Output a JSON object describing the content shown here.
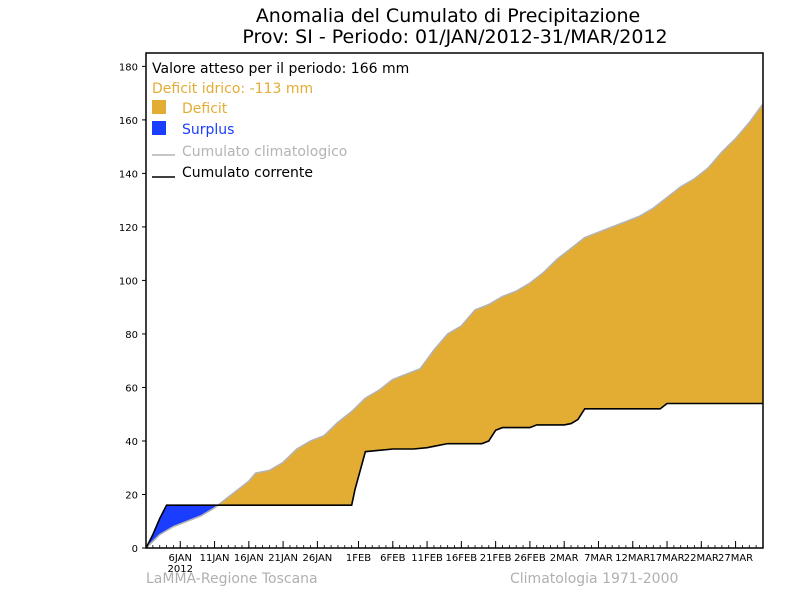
{
  "title_line1": "Anomalia del Cumulato di Precipitazione",
  "title_line2": "Prov: SI - Periodo: 01/JAN/2012-31/MAR/2012",
  "legend": {
    "expected": "Valore atteso per il periodo: 166 mm",
    "deficit_note": "Deficit idrico: -113 mm",
    "deficit": "Deficit",
    "surplus": "Surplus",
    "climatological": "Cumulato climatologico",
    "current": "Cumulato corrente"
  },
  "footer": {
    "left": "LaMMA-Regione Toscana",
    "right": "Climatologia 1971-2000"
  },
  "colors": {
    "deficit": "#e3ac33",
    "surplus": "#1a3dff",
    "climatological": "#b4b4b4",
    "current": "#000000",
    "deficit_text": "#e3ac33",
    "surplus_text": "#1a3dff"
  },
  "chart_data": {
    "type": "area",
    "x_unit": "day of period (1 = 1 JAN 2012)",
    "xlim": [
      1,
      91
    ],
    "ylim": [
      0,
      185
    ],
    "y_ticks": [
      0,
      20,
      40,
      60,
      80,
      100,
      120,
      140,
      160,
      180
    ],
    "x_ticks": [
      {
        "day": 6,
        "label": "6JAN"
      },
      {
        "day": 11,
        "label": "11JAN"
      },
      {
        "day": 16,
        "label": "16JAN"
      },
      {
        "day": 21,
        "label": "21JAN"
      },
      {
        "day": 26,
        "label": "26JAN"
      },
      {
        "day": 32,
        "label": "1FEB"
      },
      {
        "day": 37,
        "label": "6FEB"
      },
      {
        "day": 42,
        "label": "11FEB"
      },
      {
        "day": 47,
        "label": "16FEB"
      },
      {
        "day": 52,
        "label": "21FEB"
      },
      {
        "day": 57,
        "label": "26FEB"
      },
      {
        "day": 62,
        "label": "2MAR"
      },
      {
        "day": 67,
        "label": "7MAR"
      },
      {
        "day": 72,
        "label": "12MAR"
      },
      {
        "day": 77,
        "label": "17MAR"
      },
      {
        "day": 82,
        "label": "22MAR"
      },
      {
        "day": 87,
        "label": "27MAR"
      }
    ],
    "year_label": {
      "day": 6,
      "label": "2012"
    },
    "series": [
      {
        "name": "Cumulato climatologico",
        "x": [
          1,
          3,
          5,
          7,
          9,
          11,
          13,
          15,
          16,
          17,
          19,
          21,
          23,
          25,
          27,
          29,
          31,
          33,
          35,
          37,
          39,
          41,
          43,
          45,
          47,
          49,
          51,
          53,
          55,
          57,
          59,
          61,
          63,
          65,
          67,
          69,
          71,
          73,
          75,
          77,
          79,
          81,
          83,
          85,
          87,
          89,
          91
        ],
        "values": [
          0,
          5,
          8,
          10,
          12,
          15,
          19,
          23,
          25,
          28,
          29,
          32,
          37,
          40,
          42,
          47,
          51,
          56,
          59,
          63,
          65,
          67,
          74,
          80,
          83,
          89,
          91,
          94,
          96,
          99,
          103,
          108,
          112,
          116,
          118,
          120,
          122,
          124,
          127,
          131,
          135,
          138,
          142,
          148,
          153,
          159,
          166
        ]
      },
      {
        "name": "Cumulato corrente",
        "x": [
          1,
          2,
          3,
          4,
          12,
          30,
          31,
          31.5,
          33,
          35,
          37,
          40,
          42,
          43,
          45,
          50,
          51,
          52,
          53,
          57,
          58,
          60,
          62,
          63,
          64,
          65,
          70,
          76,
          77,
          80,
          91
        ],
        "values": [
          0,
          5,
          11,
          16,
          16,
          16,
          16,
          22,
          36,
          36.5,
          37,
          37,
          37.5,
          38,
          39,
          39,
          40,
          44,
          45,
          45,
          46,
          46,
          46,
          46.5,
          48,
          52,
          52,
          52,
          54,
          54,
          54
        ]
      }
    ],
    "expected_total_mm": 166,
    "deficit_mm": -113
  }
}
